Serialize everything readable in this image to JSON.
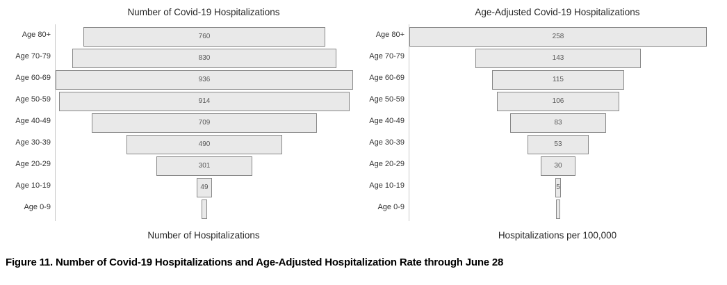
{
  "figure": {
    "caption": "Figure 11. Number of Covid-19 Hospitalizations and Age-Adjusted Hospitalization Rate through June 28"
  },
  "colors": {
    "bar_fill": "#e9e9e9",
    "bar_border": "#878787",
    "axis_line": "#c9c9c9",
    "title_text": "#262626",
    "category_text": "#333333",
    "value_text": "#595959"
  },
  "chart_data": [
    {
      "type": "bar",
      "subtype": "centered-funnel-horizontal",
      "title": "Number of Covid-19 Hospitalizations",
      "xlabel": "Number of Hospitalizations",
      "categories": [
        "Age 80+",
        "Age 70-79",
        "Age 60-69",
        "Age 50-59",
        "Age 40-49",
        "Age 30-39",
        "Age 20-29",
        "Age 10-19",
        "Age 0-9"
      ],
      "values": [
        760,
        830,
        936,
        914,
        709,
        490,
        301,
        49,
        null
      ],
      "max_value": 936,
      "unlabeled_bar_width_pct": 2.0,
      "grid": false,
      "legend": false
    },
    {
      "type": "bar",
      "subtype": "centered-funnel-horizontal",
      "title": "Age-Adjusted Covid-19 Hospitalizations",
      "xlabel": "Hospitalizations per 100,000",
      "categories": [
        "Age 80+",
        "Age 70-79",
        "Age 60-69",
        "Age 50-59",
        "Age 40-49",
        "Age 30-39",
        "Age 20-29",
        "Age 10-19",
        "Age 0-9"
      ],
      "values": [
        258,
        143,
        115,
        106,
        83,
        53,
        30,
        5,
        null
      ],
      "max_value": 258,
      "unlabeled_bar_width_pct": 1.4,
      "grid": false,
      "legend": false
    }
  ]
}
